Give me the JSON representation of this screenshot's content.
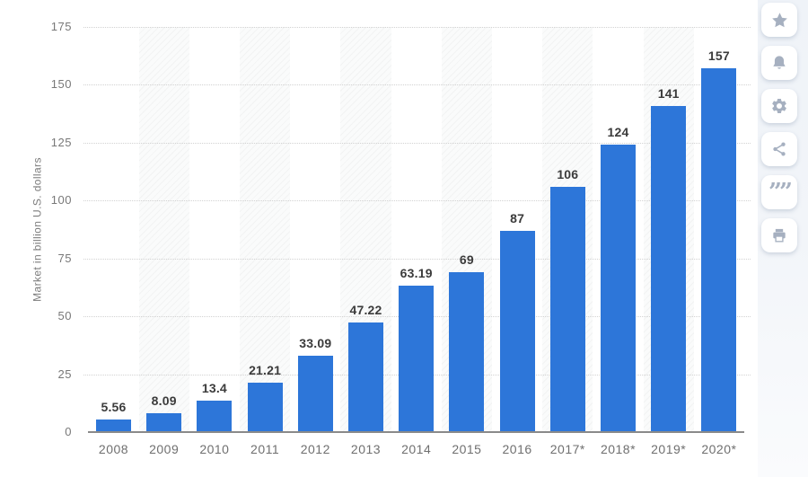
{
  "chart_data": {
    "type": "bar",
    "title": "",
    "ylabel": "Market in billion U.S. dollars",
    "xlabel": "",
    "categories": [
      "2008",
      "2009",
      "2010",
      "2011",
      "2012",
      "2013",
      "2014",
      "2015",
      "2016",
      "2017*",
      "2018*",
      "2019*",
      "2020*"
    ],
    "values": [
      5.56,
      8.09,
      13.4,
      21.21,
      33.09,
      47.22,
      63.19,
      69,
      87,
      106,
      124,
      141,
      157
    ],
    "value_labels": [
      "5.56",
      "8.09",
      "13.4",
      "21.21",
      "33.09",
      "47.22",
      "63.19",
      "69",
      "87",
      "106",
      "124",
      "141",
      "157"
    ],
    "ylim": [
      0,
      175
    ],
    "yticks": [
      0,
      25,
      50,
      75,
      100,
      125,
      150,
      175
    ],
    "grid": "horizontal-dotted",
    "legend": "none",
    "bar_color": "#2d76d9"
  },
  "colors": {
    "bar": "#2d76d9",
    "value_label": "#3b3b3b",
    "axis_text": "#787878",
    "gridline": "#d2d2d2",
    "axis_line": "#8a8a8a",
    "sidebar_icon": "#a6b0c0",
    "sidebar_strip": "#f1f4f8"
  },
  "sidebar": {
    "buttons": [
      {
        "name": "favorite",
        "icon": "star-icon"
      },
      {
        "name": "notifications",
        "icon": "bell-icon"
      },
      {
        "name": "settings",
        "icon": "gear-icon"
      },
      {
        "name": "share",
        "icon": "share-icon"
      },
      {
        "name": "cite",
        "icon": "quote-icon",
        "glyph": "””"
      },
      {
        "name": "print",
        "icon": "printer-icon"
      }
    ]
  }
}
